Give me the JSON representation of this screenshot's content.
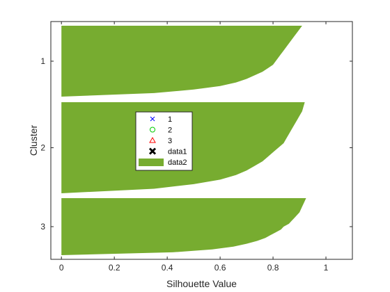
{
  "chart_data": {
    "type": "bar",
    "title": "",
    "xlabel": "Silhouette Value",
    "ylabel": "Cluster",
    "xlim": [
      -0.04,
      1.1
    ],
    "xticks": [
      0,
      0.2,
      0.4,
      0.6,
      0.8,
      1
    ],
    "xtick_labels": [
      "0",
      "0.2",
      "0.4",
      "0.6",
      "0.8",
      "1"
    ],
    "ytick_labels": [
      "1",
      "2",
      "3"
    ],
    "grid": false,
    "legend_position": "center-left",
    "fill_color": "#77ac30",
    "series": [
      {
        "cluster": "1",
        "profile": [
          [
            0.0,
            0.91
          ],
          [
            0.05,
            0.9
          ],
          [
            0.1,
            0.89
          ],
          [
            0.15,
            0.88
          ],
          [
            0.2,
            0.87
          ],
          [
            0.25,
            0.86
          ],
          [
            0.3,
            0.85
          ],
          [
            0.35,
            0.84
          ],
          [
            0.4,
            0.83
          ],
          [
            0.45,
            0.82
          ],
          [
            0.5,
            0.81
          ],
          [
            0.55,
            0.8
          ],
          [
            0.6,
            0.78
          ],
          [
            0.65,
            0.76
          ],
          [
            0.7,
            0.73
          ],
          [
            0.75,
            0.7
          ],
          [
            0.8,
            0.66
          ],
          [
            0.85,
            0.6
          ],
          [
            0.9,
            0.5
          ],
          [
            0.95,
            0.35
          ],
          [
            1.0,
            0.0
          ]
        ]
      },
      {
        "cluster": "2",
        "profile": [
          [
            0.0,
            0.92
          ],
          [
            0.05,
            0.915
          ],
          [
            0.1,
            0.91
          ],
          [
            0.15,
            0.9
          ],
          [
            0.2,
            0.89
          ],
          [
            0.25,
            0.88
          ],
          [
            0.3,
            0.87
          ],
          [
            0.35,
            0.86
          ],
          [
            0.4,
            0.85
          ],
          [
            0.45,
            0.84
          ],
          [
            0.5,
            0.82
          ],
          [
            0.55,
            0.8
          ],
          [
            0.6,
            0.78
          ],
          [
            0.65,
            0.76
          ],
          [
            0.7,
            0.73
          ],
          [
            0.75,
            0.7
          ],
          [
            0.8,
            0.66
          ],
          [
            0.85,
            0.6
          ],
          [
            0.9,
            0.5
          ],
          [
            0.95,
            0.35
          ],
          [
            1.0,
            0.0
          ]
        ]
      },
      {
        "cluster": "3",
        "profile": [
          [
            0.0,
            0.925
          ],
          [
            0.05,
            0.92
          ],
          [
            0.1,
            0.915
          ],
          [
            0.15,
            0.91
          ],
          [
            0.2,
            0.905
          ],
          [
            0.25,
            0.9
          ],
          [
            0.3,
            0.89
          ],
          [
            0.35,
            0.88
          ],
          [
            0.4,
            0.87
          ],
          [
            0.45,
            0.86
          ],
          [
            0.5,
            0.84
          ],
          [
            0.55,
            0.83
          ],
          [
            0.6,
            0.81
          ],
          [
            0.65,
            0.79
          ],
          [
            0.7,
            0.77
          ],
          [
            0.75,
            0.74
          ],
          [
            0.8,
            0.7
          ],
          [
            0.85,
            0.65
          ],
          [
            0.9,
            0.57
          ],
          [
            0.95,
            0.42
          ],
          [
            1.0,
            0.0
          ]
        ]
      }
    ],
    "legend": [
      {
        "label": "1",
        "marker": "x",
        "color": "#0000ff"
      },
      {
        "label": "2",
        "marker": "circle",
        "color": "#00cc00"
      },
      {
        "label": "3",
        "marker": "triangle",
        "color": "#ff0000"
      },
      {
        "label": "data1",
        "marker": "bold-x",
        "color": "#000000"
      },
      {
        "label": "data2",
        "marker": "patch",
        "color": "#77ac30"
      }
    ]
  }
}
